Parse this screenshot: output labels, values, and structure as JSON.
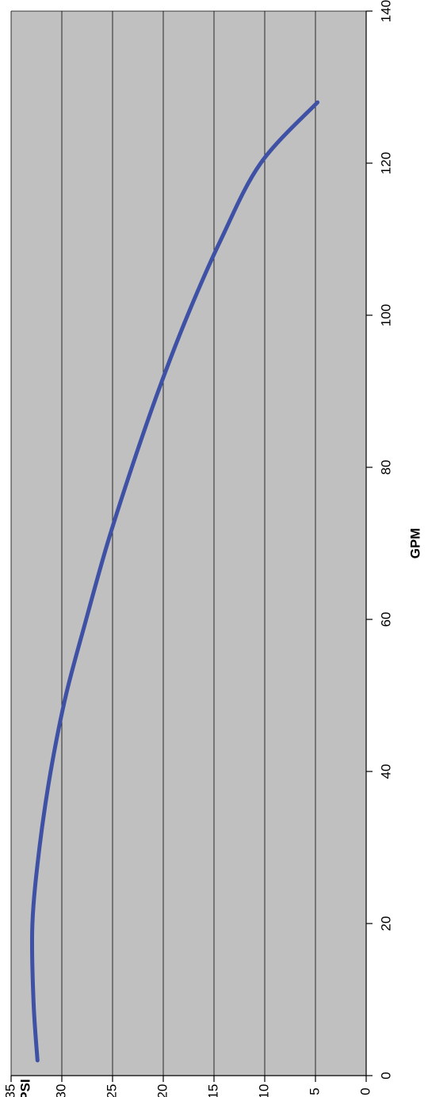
{
  "chart_data": {
    "type": "line",
    "orientation": "rotated 90 degrees clockwise (x axis runs bottom-to-top on the right, y axis runs right-to-left along the bottom)",
    "xlabel": "GPM",
    "ylabel": "PSI",
    "xlim": [
      0,
      140
    ],
    "ylim": [
      0,
      35
    ],
    "x_ticks": [
      "0",
      "20",
      "40",
      "60",
      "80",
      "100",
      "120",
      "140"
    ],
    "y_ticks": [
      "0",
      "5",
      "10",
      "15",
      "20",
      "25",
      "30",
      "35"
    ],
    "grid": "horizontal major gridlines (every 5 PSI)",
    "plot_background": "#c0c0c0",
    "series": [
      {
        "color": "#3f51a5",
        "x": [
          2,
          10,
          20,
          30,
          40,
          50,
          60,
          70,
          80,
          90,
          100,
          110,
          120,
          128
        ],
        "values": [
          32.4,
          32.8,
          32.9,
          32.2,
          31.1,
          29.6,
          27.6,
          25.5,
          23.1,
          20.5,
          17.6,
          14.3,
          10.4,
          4.8
        ]
      }
    ]
  }
}
